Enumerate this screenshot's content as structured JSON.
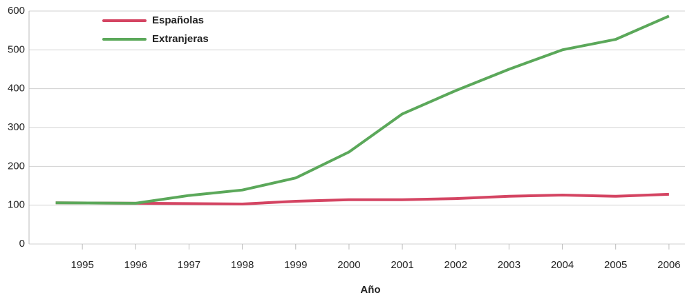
{
  "chart_data": {
    "type": "line",
    "x_label": "Año",
    "x": [
      1994.5,
      1996,
      1997,
      1998,
      1999,
      2000,
      2001,
      2002,
      2003,
      2004,
      2005,
      2006
    ],
    "series": [
      {
        "name": "Españolas",
        "color": "#d44462",
        "values": [
          106,
          105,
          104,
          103,
          110,
          114,
          114,
          117,
          123,
          126,
          123,
          128
        ]
      },
      {
        "name": "Extranjeras",
        "color": "#5ba85a",
        "values": [
          106,
          105,
          125,
          139,
          170,
          237,
          335,
          395,
          450,
          500,
          527,
          587
        ]
      }
    ],
    "xlim": [
      1994,
      2006.3
    ],
    "xticks": [
      1995,
      1996,
      1997,
      1998,
      1999,
      2000,
      2001,
      2002,
      2003,
      2004,
      2005,
      2006
    ],
    "ylim": [
      0,
      600
    ],
    "yticks": [
      0,
      100,
      200,
      300,
      400,
      500,
      600
    ],
    "grid": true
  }
}
